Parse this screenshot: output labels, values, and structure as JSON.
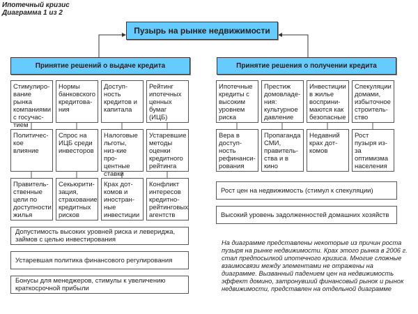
{
  "title": {
    "line1": "Ипотечный кризис",
    "line2": "Диаграмма 1 из 2"
  },
  "root": "Пузырь на рынке недвижимости",
  "left": {
    "header": "Принятие решений о выдаче кредита",
    "columns": [
      [
        "Стимулиро-вание рынка компаниями с госучас-тием",
        "Политичес-кое влияние",
        "Правитель-ственные цели по доступности жилья"
      ],
      [
        "Нормы банковского кредитова-ния",
        "Спрос на ИЦБ среди инвесторов",
        "Секьюрити-зация, страхование кредитных рисков"
      ],
      [
        "Доступ-ность кредитов и капитала",
        "Налоговые льготы, низ-кие про-центные ставки",
        "Крах дот-комов и иностран-ные инвестиции"
      ],
      [
        "Рейтинг ипотечных ценных бумаг (ИЦБ)",
        "Устаревшие методы оценки кредитного рейтинга",
        "Конфликт интересов кредитно-рейтинговых агентств"
      ]
    ],
    "wide": [
      "Допустимость высоких уровней риска и левериджа, займов с целью инвестирования",
      "Устаревшая политика финансового регулирования",
      "Бонусы для менеджеров, стимулы к увеличению краткосрочной прибыли"
    ]
  },
  "right": {
    "header": "Принятие решения о получении кредита",
    "columns": [
      [
        "Ипотечные кредиты с высоким уровнем риска",
        "Вера в доступ-ность рефинанси-рования"
      ],
      [
        "Престиж домовладе-ния: культурное давление",
        "Пропаганда СМИ, правитель-ства и в кино"
      ],
      [
        "Инвестиции в жилье восприни-маются как безопасные",
        "Недавний крах дот-комов"
      ],
      [
        "Спекуляции домами, избыточное строитель-ство",
        "Рост пузыря из-за оптимизма населения"
      ]
    ],
    "wide": [
      "Рост цен на недвижимость (стимул к спекуляции)",
      "Высокий уровень задолженностей домашних хозяйств"
    ]
  },
  "note": "На диаграмме представлены некоторые из причин роста пузыря на рынке недвижимости. Крах этого рынка в 2006 г. стал предпосылкой ипотечного кризиса. Многие сложные взаимосвязи между элементами не отражены на диаграмме. Вызванный падением цен на недвижимость эффект домино, затронувший финансовый рынок и рынок недвижимости, представлен на отдельной диаграмме",
  "colors": {
    "header_fill": "#66ccff",
    "border": "#555555"
  }
}
